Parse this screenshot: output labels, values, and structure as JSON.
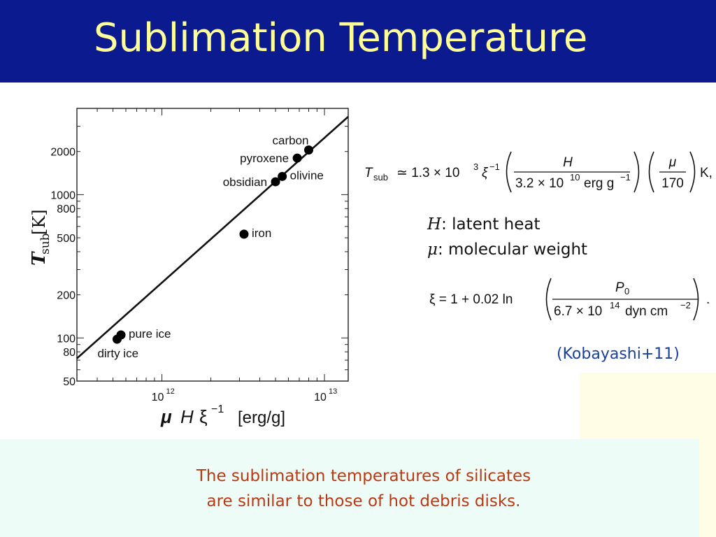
{
  "slide": {
    "title": "Sublimation Temperature",
    "reference": "(Kobayashi+11)",
    "conclusion_line1": "The sublimation temperatures of silicates",
    "conclusion_line2": "are similar to those of hot debris disks."
  },
  "definitions": [
    {
      "symbol": "H",
      "text": ": latent heat"
    },
    {
      "symbol": "μ",
      "text": ": molecular weight"
    }
  ],
  "equations": {
    "tsub": {
      "lhs": "T",
      "lhs_sub": "sub",
      "approx": "≃ 1.3 × 10",
      "exp1": "3",
      "xi": "ξ",
      "xi_exp": "−1",
      "frac1_num": "H",
      "frac1_den": "3.2 × 10",
      "frac1_den_exp": "10",
      "frac1_den_unit": "erg g",
      "frac1_den_unit_exp": "−1",
      "frac2_num": "μ",
      "frac2_den": "170",
      "unit": "K,"
    },
    "xi_eq": {
      "lhs": "ξ = 1 + 0.02 ln",
      "num": "P",
      "num_sub": "0",
      "den": "6.7 × 10",
      "den_exp": "14",
      "den_unit": "dyn cm",
      "den_unit_exp": "−2",
      "end": "."
    }
  },
  "chart_data": {
    "type": "scatter",
    "xscale": "log",
    "yscale": "log",
    "xlim": [
      300000000000.0,
      14000000000000.0
    ],
    "ylim": [
      50,
      4000
    ],
    "xlabel_parts": {
      "mu": "μ",
      "h": "H",
      "xi": "ξ",
      "xi_exp": "−1",
      "unit": "[erg/g]"
    },
    "ylabel_parts": {
      "t": "T",
      "sub": "sub",
      "unit": "[K]"
    },
    "x_ticks": [
      {
        "value": 1000000000000.0,
        "base": "10",
        "exp": "12"
      },
      {
        "value": 10000000000000.0,
        "base": "10",
        "exp": "13"
      }
    ],
    "y_ticks": [
      {
        "value": 50,
        "label": "50"
      },
      {
        "value": 80,
        "label": "80"
      },
      {
        "value": 100,
        "label": "100"
      },
      {
        "value": 200,
        "label": "200"
      },
      {
        "value": 500,
        "label": "500"
      },
      {
        "value": 800,
        "label": "800"
      },
      {
        "value": 1000,
        "label": "1000"
      },
      {
        "value": 2000,
        "label": "2000"
      }
    ],
    "points": [
      {
        "label": "dirty ice",
        "x": 530000000000.0,
        "y": 98,
        "label_pos": "below-left"
      },
      {
        "label": "pure ice",
        "x": 560000000000.0,
        "y": 105,
        "label_pos": "right"
      },
      {
        "label": "iron",
        "x": 3200000000000.0,
        "y": 530,
        "label_pos": "right"
      },
      {
        "label": "obsidian",
        "x": 5000000000000.0,
        "y": 1230,
        "label_pos": "left"
      },
      {
        "label": "olivine",
        "x": 5500000000000.0,
        "y": 1340,
        "label_pos": "right"
      },
      {
        "label": "pyroxene",
        "x": 6800000000000.0,
        "y": 1800,
        "label_pos": "above-left"
      },
      {
        "label": "carbon",
        "x": 8000000000000.0,
        "y": 2050,
        "label_pos": "above"
      }
    ],
    "fit_line": {
      "x": [
        300000000000.0,
        14000000000000.0
      ],
      "y": [
        72,
        3500
      ]
    }
  }
}
